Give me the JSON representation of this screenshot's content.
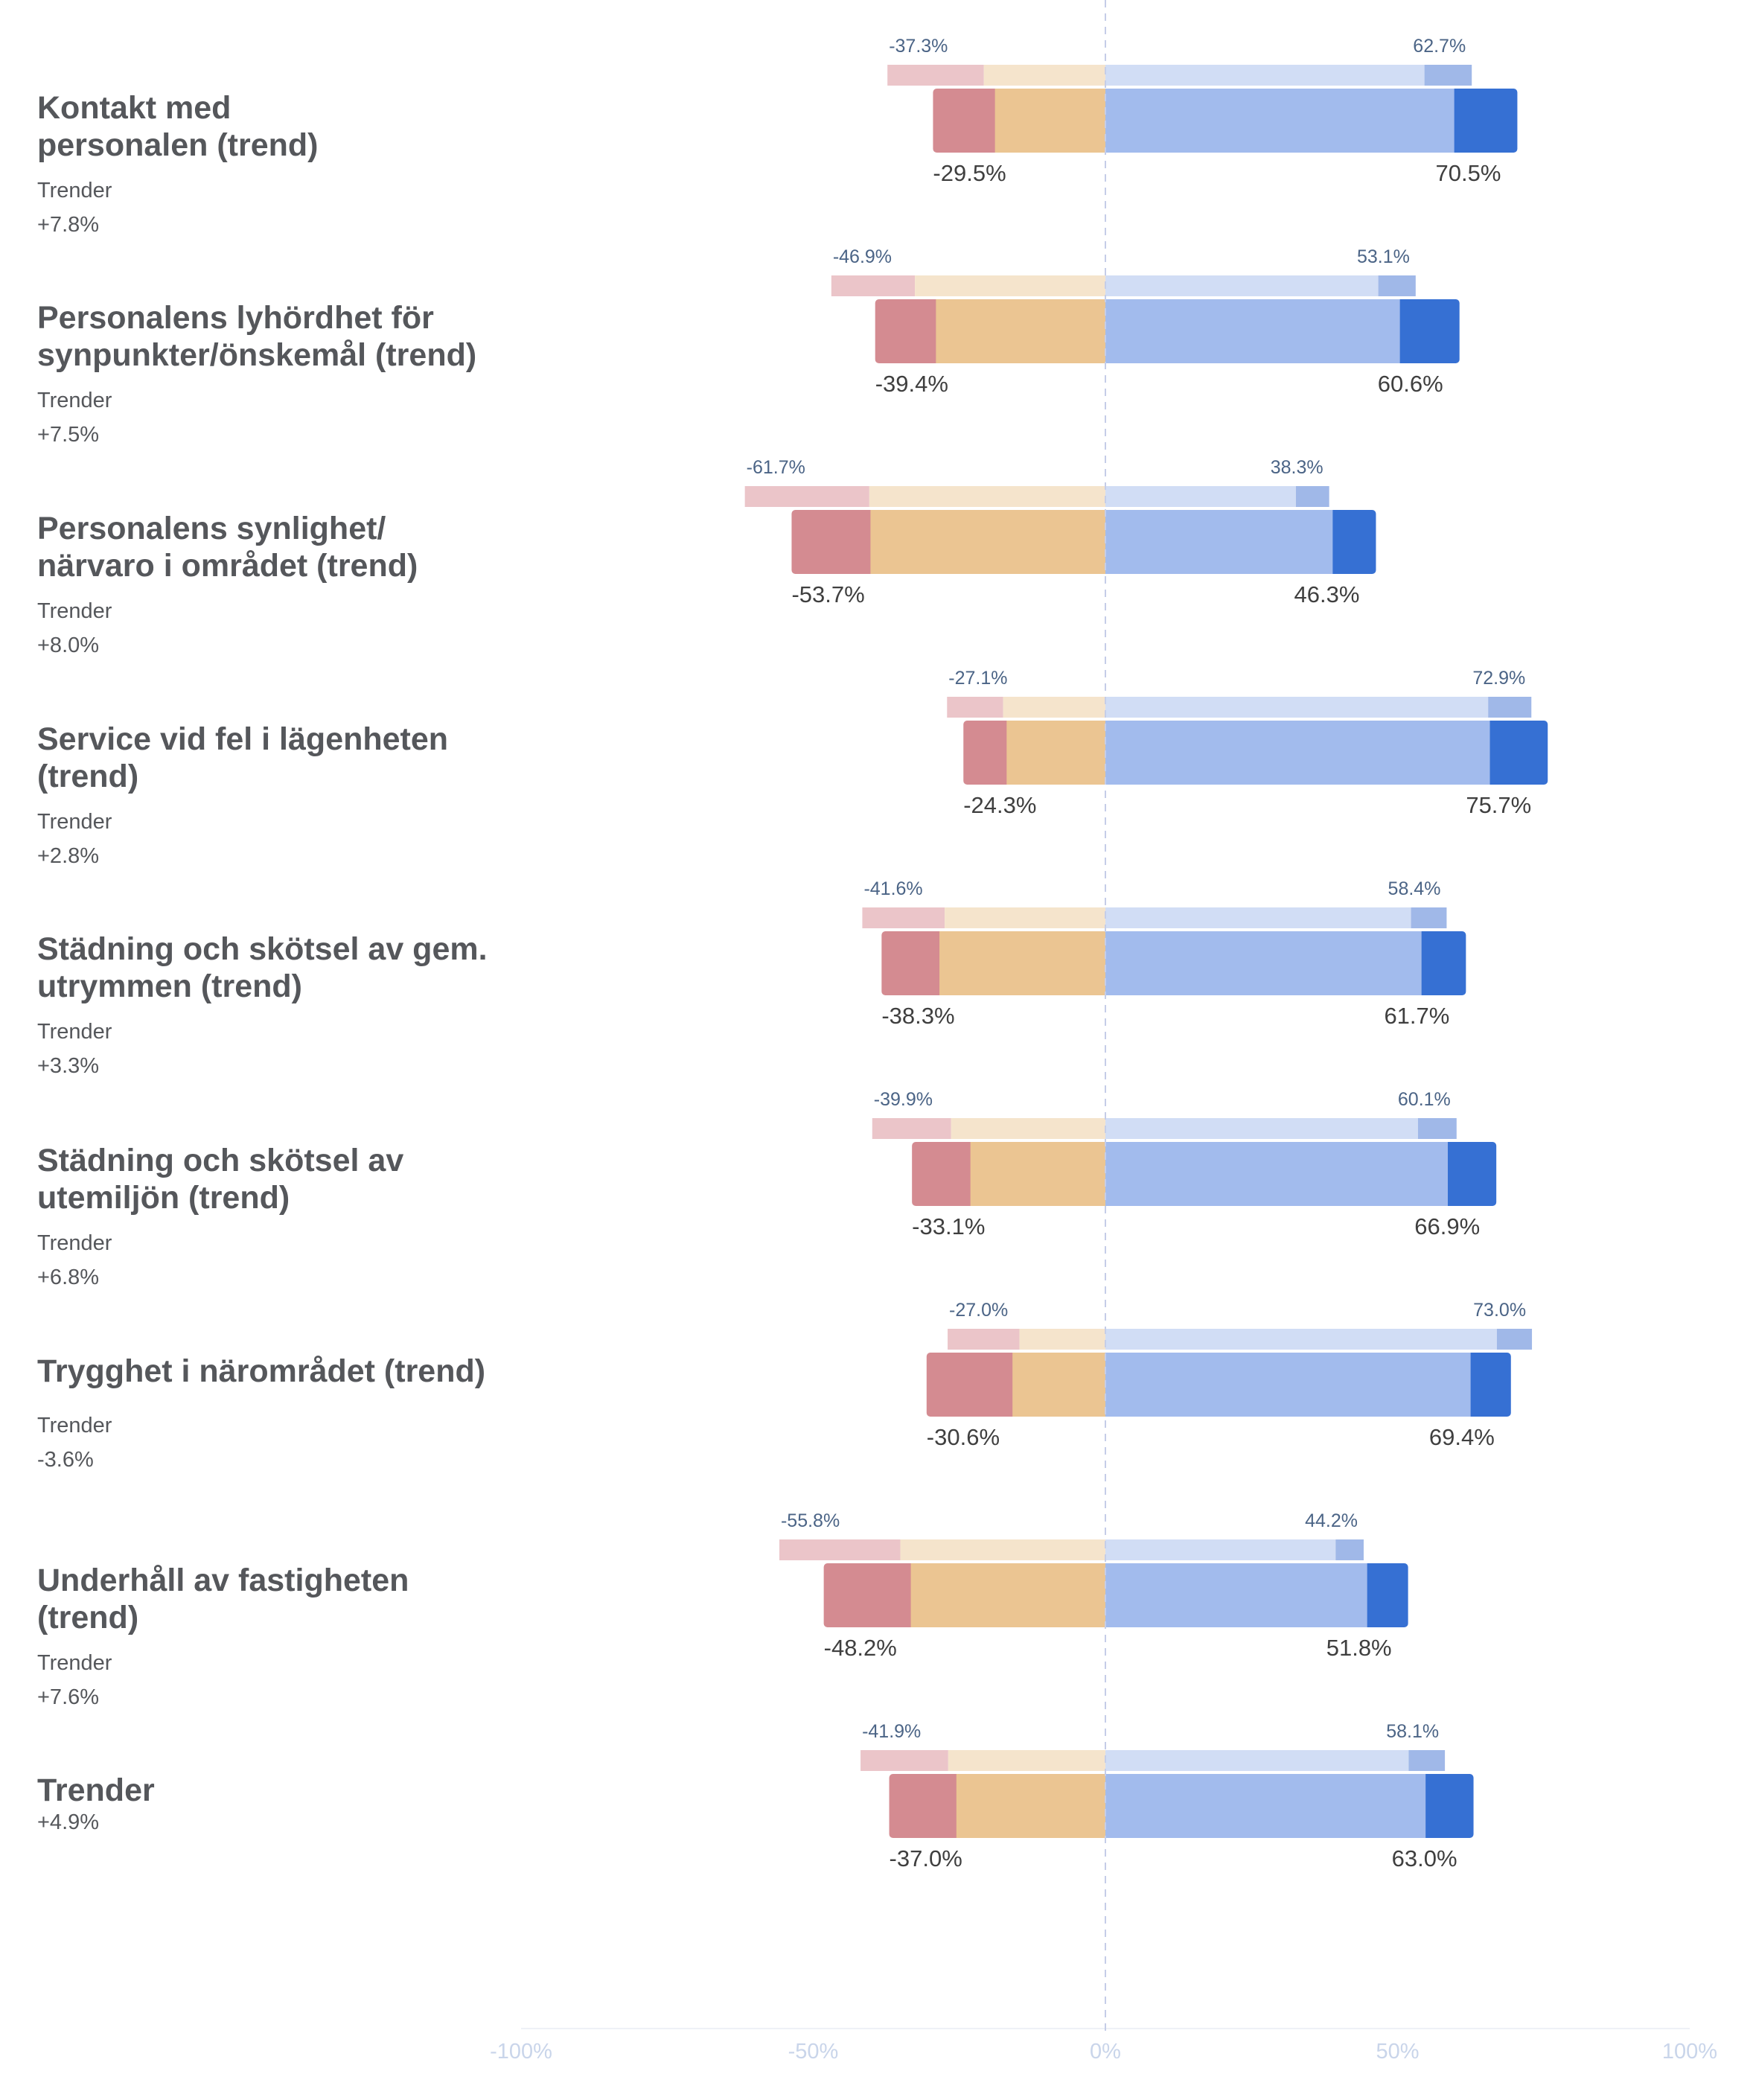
{
  "chart_data": {
    "type": "bar",
    "subtype": "diverging-stacked-bar",
    "title": "",
    "xlim": [
      -100,
      100
    ],
    "x_ticks": [
      "-100%",
      "-50%",
      "0%",
      "50%",
      "100%"
    ],
    "x_tick_values": [
      -100,
      -50,
      0,
      50,
      100
    ],
    "colors": {
      "neg_strong": "#d48b91",
      "neg_weak": "#ebc592",
      "pos_weak": "#a2bbed",
      "pos_strong": "#3670d3",
      "prev_neg_strong": "#ebc5c9",
      "prev_neg_weak": "#f5e4cc",
      "prev_pos_weak": "#d1ddf5",
      "prev_pos_strong": "#a0b8e8",
      "prev_label": "#4b6486",
      "main_label": "#3f3f3f",
      "axis_label": "#c9d5ea",
      "zero_line": "#c5cde8"
    },
    "rows": [
      {
        "label": "Kontakt med personalen (trend)",
        "trend_label": "Trender",
        "trend_value": "+7.8%",
        "current": {
          "neg_strong": 10.6,
          "neg_weak": 18.9,
          "pos_weak": 59.7,
          "pos_strong": 10.8,
          "neg_total_label": "-29.5%",
          "pos_total_label": "70.5%"
        },
        "previous": {
          "neg_strong": 16.5,
          "neg_weak": 20.8,
          "pos_weak": 54.6,
          "pos_strong": 8.1,
          "neg_total_label": "-37.3%",
          "pos_total_label": "62.7%"
        }
      },
      {
        "label": "Personalens lyhördhet för synpunkter/önskemål (trend)",
        "trend_label": "Trender",
        "trend_value": "+7.5%",
        "current": {
          "neg_strong": 10.4,
          "neg_weak": 29.0,
          "pos_weak": 50.4,
          "pos_strong": 10.2,
          "neg_total_label": "-39.4%",
          "pos_total_label": "60.6%"
        },
        "previous": {
          "neg_strong": 14.3,
          "neg_weak": 32.6,
          "pos_weak": 46.7,
          "pos_strong": 6.4,
          "neg_total_label": "-46.9%",
          "pos_total_label": "53.1%"
        }
      },
      {
        "label": "Personalens synlighet/ närvaro i området (trend)",
        "trend_label": "Trender",
        "trend_value": "+8.0%",
        "current": {
          "neg_strong": 13.5,
          "neg_weak": 40.2,
          "pos_weak": 38.9,
          "pos_strong": 7.4,
          "neg_total_label": "-53.7%",
          "pos_total_label": "46.3%"
        },
        "previous": {
          "neg_strong": 21.3,
          "neg_weak": 40.4,
          "pos_weak": 32.6,
          "pos_strong": 5.7,
          "neg_total_label": "-61.7%",
          "pos_total_label": "38.3%"
        }
      },
      {
        "label": "Service vid fel i lägenheten (trend)",
        "trend_label": "Trender",
        "trend_value": "+2.8%",
        "current": {
          "neg_strong": 7.4,
          "neg_weak": 16.9,
          "pos_weak": 65.8,
          "pos_strong": 9.9,
          "neg_total_label": "-24.3%",
          "pos_total_label": "75.7%"
        },
        "previous": {
          "neg_strong": 9.6,
          "neg_weak": 17.5,
          "pos_weak": 65.5,
          "pos_strong": 7.4,
          "neg_total_label": "-27.1%",
          "pos_total_label": "72.9%"
        }
      },
      {
        "label": "Städning och skötsel av gem. utrymmen (trend)",
        "trend_label": "Trender",
        "trend_value": "+3.3%",
        "current": {
          "neg_strong": 9.9,
          "neg_weak": 28.4,
          "pos_weak": 54.1,
          "pos_strong": 7.6,
          "neg_total_label": "-38.3%",
          "pos_total_label": "61.7%"
        },
        "previous": {
          "neg_strong": 14.1,
          "neg_weak": 27.5,
          "pos_weak": 52.3,
          "pos_strong": 6.1,
          "neg_total_label": "-41.6%",
          "pos_total_label": "58.4%"
        }
      },
      {
        "label": "Städning och skötsel av utemiljön (trend)",
        "trend_label": "Trender",
        "trend_value": "+6.8%",
        "current": {
          "neg_strong": 10.0,
          "neg_weak": 23.1,
          "pos_weak": 58.6,
          "pos_strong": 8.3,
          "neg_total_label": "-33.1%",
          "pos_total_label": "66.9%"
        },
        "previous": {
          "neg_strong": 13.5,
          "neg_weak": 26.4,
          "pos_weak": 53.5,
          "pos_strong": 6.6,
          "neg_total_label": "-39.9%",
          "pos_total_label": "60.1%"
        }
      },
      {
        "label": "Trygghet i närområdet (trend)",
        "trend_label": "Trender",
        "trend_value": "-3.6%",
        "current": {
          "neg_strong": 14.7,
          "neg_weak": 15.9,
          "pos_weak": 62.5,
          "pos_strong": 6.9,
          "neg_total_label": "-30.6%",
          "pos_total_label": "69.4%"
        },
        "previous": {
          "neg_strong": 12.3,
          "neg_weak": 14.7,
          "pos_weak": 67.0,
          "pos_strong": 6.0,
          "neg_total_label": "-27.0%",
          "pos_total_label": "73.0%"
        }
      },
      {
        "label": "Underhåll av fastigheten (trend)",
        "trend_label": "Trender",
        "trend_value": "+7.6%",
        "current": {
          "neg_strong": 14.9,
          "neg_weak": 33.3,
          "pos_weak": 44.8,
          "pos_strong": 7.0,
          "neg_total_label": "-48.2%",
          "pos_total_label": "51.8%"
        },
        "previous": {
          "neg_strong": 20.7,
          "neg_weak": 35.1,
          "pos_weak": 39.4,
          "pos_strong": 4.8,
          "neg_total_label": "-55.8%",
          "pos_total_label": "44.2%"
        }
      }
    ],
    "total": {
      "label": "Trender",
      "trend_value": "+4.9%",
      "current": {
        "neg_strong": 11.5,
        "neg_weak": 25.5,
        "pos_weak": 54.8,
        "pos_strong": 8.2,
        "neg_total_label": "-37.0%",
        "pos_total_label": "63.0%"
      },
      "previous": {
        "neg_strong": 15.0,
        "neg_weak": 26.9,
        "pos_weak": 51.9,
        "pos_strong": 6.2,
        "neg_total_label": "-41.9%",
        "pos_total_label": "58.1%"
      }
    }
  }
}
